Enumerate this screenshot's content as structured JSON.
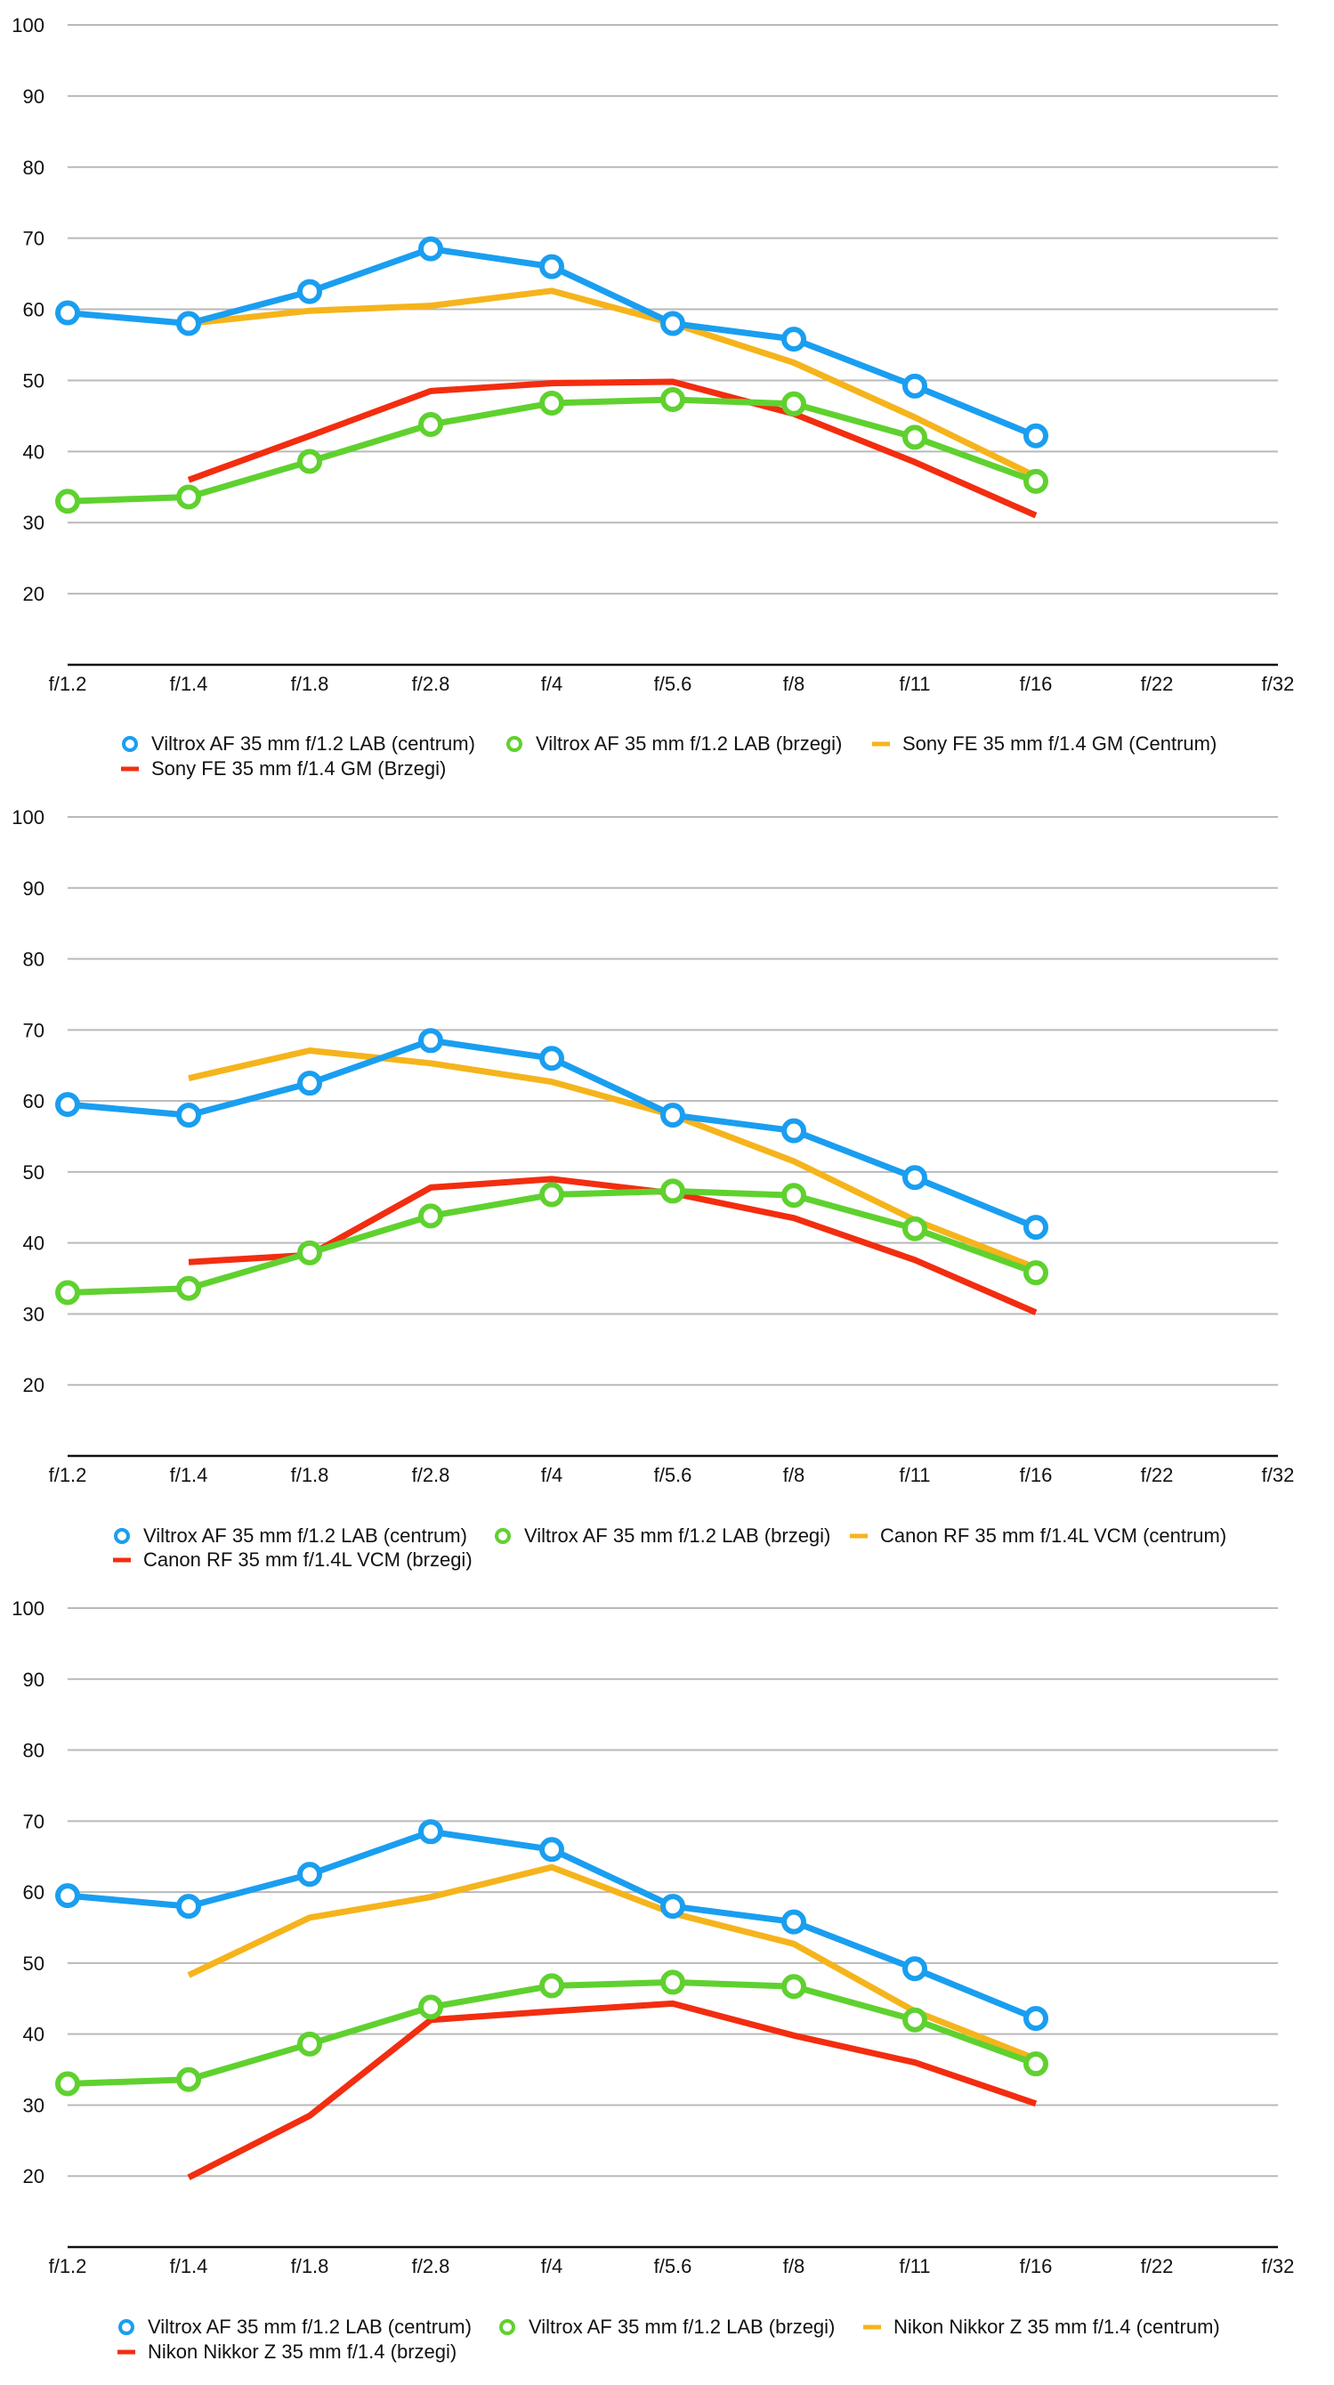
{
  "chart_data": [
    {
      "type": "line",
      "x": [
        "f/1.2",
        "f/1.4",
        "f/1.8",
        "f/2.8",
        "f/4",
        "f/5.6",
        "f/8",
        "f/11",
        "f/16",
        "f/22",
        "f/32"
      ],
      "yticks": [
        20,
        30,
        40,
        50,
        60,
        70,
        80,
        90,
        100
      ],
      "ylim": [
        10,
        100
      ],
      "grid": true,
      "legend_position": "bottom",
      "series": [
        {
          "name": "Viltrox AF 35 mm f/1.2 LAB (centrum)",
          "color": "#1a9ef0",
          "markers": true,
          "values": [
            59.5,
            58,
            62.5,
            68.5,
            66,
            58,
            55.8,
            49.2,
            42.2,
            null,
            null
          ]
        },
        {
          "name": "Viltrox AF 35 mm f/1.2 LAB (brzegi)",
          "color": "#5fd12f",
          "markers": true,
          "values": [
            33,
            33.6,
            38.6,
            43.8,
            46.8,
            47.3,
            46.7,
            42,
            35.8,
            null,
            null
          ]
        },
        {
          "name": "Sony FE 35 mm f/1.4 GM (Centrum)",
          "color": "#f5b41c",
          "markers": false,
          "values": [
            null,
            58,
            59.8,
            60.5,
            62.6,
            58,
            52.5,
            44.8,
            36.5,
            null,
            null
          ]
        },
        {
          "name": "Sony FE 35 mm f/1.4 GM (Brzegi)",
          "color": "#f22d10",
          "markers": false,
          "values": [
            null,
            36,
            42.2,
            48.5,
            49.6,
            49.8,
            45.3,
            38.5,
            31,
            null,
            null
          ]
        }
      ]
    },
    {
      "type": "line",
      "x": [
        "f/1.2",
        "f/1.4",
        "f/1.8",
        "f/2.8",
        "f/4",
        "f/5.6",
        "f/8",
        "f/11",
        "f/16",
        "f/22",
        "f/32"
      ],
      "yticks": [
        20,
        30,
        40,
        50,
        60,
        70,
        80,
        90,
        100
      ],
      "ylim": [
        10,
        100
      ],
      "grid": true,
      "legend_position": "bottom",
      "series": [
        {
          "name": "Viltrox AF 35 mm f/1.2 LAB (centrum)",
          "color": "#1a9ef0",
          "markers": true,
          "values": [
            59.5,
            58,
            62.5,
            68.5,
            66,
            58,
            55.8,
            49.2,
            42.2,
            null,
            null
          ]
        },
        {
          "name": "Viltrox AF 35 mm f/1.2 LAB (brzegi)",
          "color": "#5fd12f",
          "markers": true,
          "values": [
            33,
            33.6,
            38.6,
            43.8,
            46.8,
            47.3,
            46.7,
            42,
            35.8,
            null,
            null
          ]
        },
        {
          "name": "Canon RF 35 mm f/1.4L VCM (centrum)",
          "color": "#f5b41c",
          "markers": false,
          "values": [
            null,
            63.2,
            67.1,
            65.3,
            62.7,
            58,
            51.5,
            43.2,
            36.5,
            null,
            null
          ]
        },
        {
          "name": "Canon RF 35 mm f/1.4L VCM (brzegi)",
          "color": "#f22d10",
          "markers": false,
          "values": [
            null,
            37.3,
            38.3,
            47.8,
            49,
            47,
            43.5,
            37.6,
            30.2,
            null,
            null
          ]
        }
      ]
    },
    {
      "type": "line",
      "x": [
        "f/1.2",
        "f/1.4",
        "f/1.8",
        "f/2.8",
        "f/4",
        "f/5.6",
        "f/8",
        "f/11",
        "f/16",
        "f/22",
        "f/32"
      ],
      "yticks": [
        20,
        30,
        40,
        50,
        60,
        70,
        80,
        90,
        100
      ],
      "ylim": [
        10,
        100
      ],
      "grid": true,
      "legend_position": "bottom",
      "series": [
        {
          "name": "Viltrox AF 35 mm f/1.2 LAB (centrum)",
          "color": "#1a9ef0",
          "markers": true,
          "values": [
            59.5,
            58,
            62.5,
            68.5,
            66,
            58,
            55.8,
            49.2,
            42.2,
            null,
            null
          ]
        },
        {
          "name": "Viltrox AF 35 mm f/1.2 LAB (brzegi)",
          "color": "#5fd12f",
          "markers": true,
          "values": [
            33,
            33.6,
            38.6,
            43.8,
            46.8,
            47.3,
            46.7,
            42,
            35.8,
            null,
            null
          ]
        },
        {
          "name": "Nikon Nikkor Z 35 mm f/1.4 (centrum)",
          "color": "#f5b41c",
          "markers": false,
          "values": [
            null,
            48.3,
            56.4,
            59.3,
            63.5,
            57,
            52.7,
            43.2,
            36.5,
            null,
            null
          ]
        },
        {
          "name": "Nikon Nikkor Z 35 mm f/1.4 (brzegi)",
          "color": "#f22d10",
          "markers": false,
          "values": [
            null,
            19.8,
            28.5,
            42,
            43.2,
            44.3,
            39.8,
            36,
            30.2,
            null,
            null
          ]
        }
      ]
    }
  ]
}
